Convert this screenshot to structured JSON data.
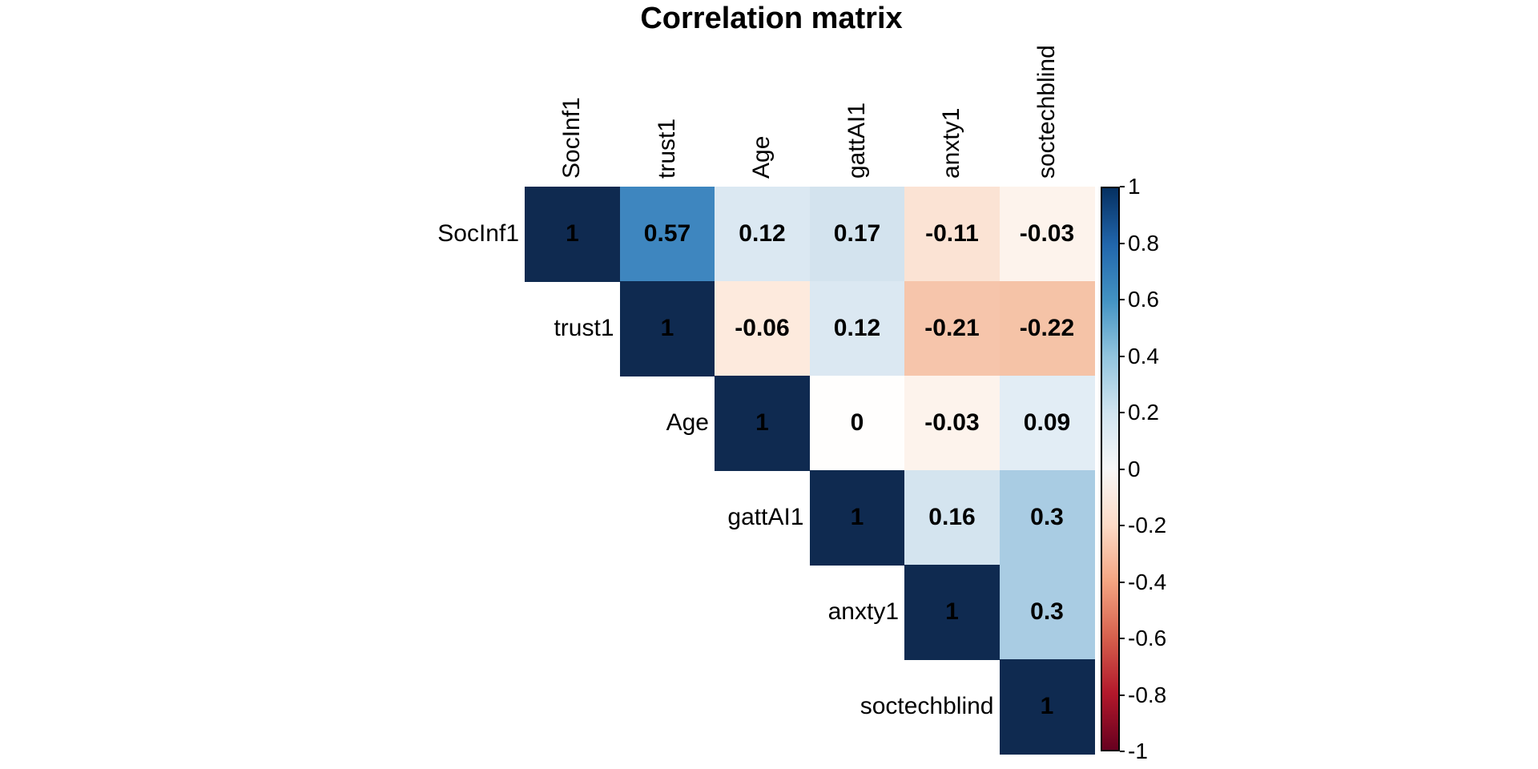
{
  "chart_data": {
    "type": "heatmap",
    "title": "Correlation matrix",
    "variables": [
      "SocInf1",
      "trust1",
      "Age",
      "gattAI1",
      "anxty1",
      "soctechblind"
    ],
    "triangle": "upper",
    "legend_position": "right",
    "colorbar": {
      "range": [
        -1,
        1
      ],
      "tick_labels": [
        "1",
        "0.8",
        "0.6",
        "0.4",
        "0.2",
        "0",
        "-0.2",
        "-0.4",
        "-0.6",
        "-0.8",
        "-1"
      ],
      "gradient_top_to_bottom": [
        "#053061",
        "#2166ac",
        "#4393c3",
        "#92c5de",
        "#d1e5f0",
        "#f7f7f7",
        "#fddbc7",
        "#f4a582",
        "#d6604d",
        "#b2182b",
        "#67001f"
      ]
    },
    "rows": [
      {
        "label": "SocInf1",
        "cells": [
          {
            "col": 0,
            "text": "1",
            "value": 1,
            "color": "#0f2a50"
          },
          {
            "col": 1,
            "text": "0.57",
            "value": 0.57,
            "color": "#3e86bf"
          },
          {
            "col": 2,
            "text": "0.12",
            "value": 0.12,
            "color": "#dbe8f2"
          },
          {
            "col": 3,
            "text": "0.17",
            "value": 0.17,
            "color": "#d3e3ee"
          },
          {
            "col": 4,
            "text": "-0.11",
            "value": -0.11,
            "color": "#fbe3d4"
          },
          {
            "col": 5,
            "text": "-0.03",
            "value": -0.03,
            "color": "#fdf3ec"
          }
        ]
      },
      {
        "label": "trust1",
        "cells": [
          {
            "col": 1,
            "text": "1",
            "value": 1,
            "color": "#0f2a50"
          },
          {
            "col": 2,
            "text": "-0.06",
            "value": -0.06,
            "color": "#fdeadd"
          },
          {
            "col": 3,
            "text": "0.12",
            "value": 0.12,
            "color": "#dbe8f2"
          },
          {
            "col": 4,
            "text": "-0.21",
            "value": -0.21,
            "color": "#f6c5ab"
          },
          {
            "col": 5,
            "text": "-0.22",
            "value": -0.22,
            "color": "#f5c3a7"
          }
        ]
      },
      {
        "label": "Age",
        "cells": [
          {
            "col": 2,
            "text": "1",
            "value": 1,
            "color": "#0f2a50"
          },
          {
            "col": 3,
            "text": "0",
            "value": 0,
            "color": "#fffefd"
          },
          {
            "col": 4,
            "text": "-0.03",
            "value": -0.03,
            "color": "#fdf3ec"
          },
          {
            "col": 5,
            "text": "0.09",
            "value": 0.09,
            "color": "#e2edf5"
          }
        ]
      },
      {
        "label": "gattAI1",
        "cells": [
          {
            "col": 3,
            "text": "1",
            "value": 1,
            "color": "#0f2a50"
          },
          {
            "col": 4,
            "text": "0.16",
            "value": 0.16,
            "color": "#d4e4ef"
          },
          {
            "col": 5,
            "text": "0.3",
            "value": 0.3,
            "color": "#a9cce3"
          }
        ]
      },
      {
        "label": "anxty1",
        "cells": [
          {
            "col": 4,
            "text": "1",
            "value": 1,
            "color": "#0f2a50"
          },
          {
            "col": 5,
            "text": "0.3",
            "value": 0.3,
            "color": "#a9cce3"
          }
        ]
      },
      {
        "label": "soctechblind",
        "cells": [
          {
            "col": 5,
            "text": "1",
            "value": 1,
            "color": "#0f2a50"
          }
        ]
      }
    ]
  }
}
